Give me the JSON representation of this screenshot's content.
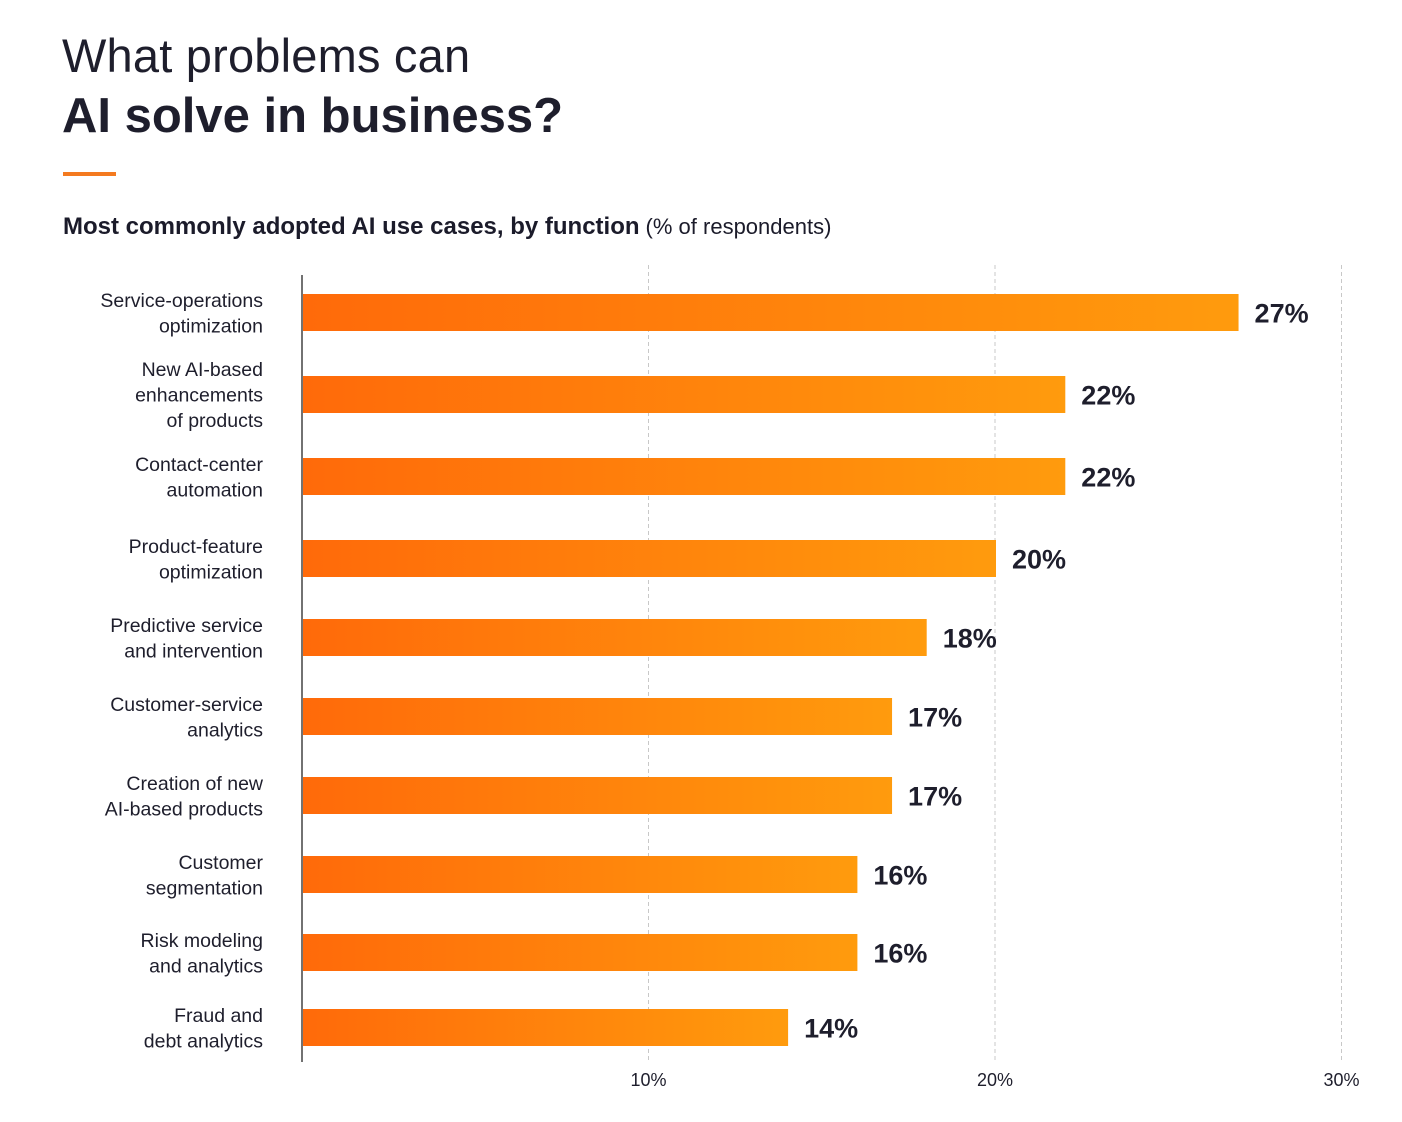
{
  "header": {
    "title_line1": "What problems can",
    "title_line2": "AI solve in business?",
    "subtitle": "Most commonly adopted AI use cases, by function",
    "subtitle_unit": "(% of respondents)"
  },
  "colors": {
    "accent": "#f47a1f",
    "bar_start": "#ff6a0a",
    "bar_end": "#ff9b0d",
    "text": "#1e1e2c",
    "grid": "#c8c8c8",
    "axis": "#444444"
  },
  "chart_data": {
    "type": "bar",
    "orientation": "horizontal",
    "title": "What problems can AI solve in business?",
    "subtitle": "Most commonly adopted AI use cases, by function (% of respondents)",
    "categories": [
      [
        "Service-operations",
        "optimization"
      ],
      [
        "New AI-based",
        "enhancements",
        "of products"
      ],
      [
        "Contact-center",
        "automation"
      ],
      [
        "Product-feature",
        "optimization"
      ],
      [
        "Predictive service",
        "and intervention"
      ],
      [
        "Customer-service",
        "analytics"
      ],
      [
        "Creation of new",
        "AI-based products"
      ],
      [
        "Customer",
        "segmentation"
      ],
      [
        "Risk modeling",
        "and analytics"
      ],
      [
        "Fraud and",
        "debt analytics"
      ]
    ],
    "values": [
      27,
      22,
      22,
      20,
      18,
      17,
      17,
      16,
      16,
      14
    ],
    "value_labels": [
      "27%",
      "22%",
      "22%",
      "20%",
      "18%",
      "17%",
      "17%",
      "16%",
      "16%",
      "14%"
    ],
    "xlim": [
      0,
      30
    ],
    "xticks": [
      10,
      20,
      30
    ],
    "xtick_labels": [
      "10%",
      "20%",
      "30%"
    ],
    "grid": "vertical dashed",
    "legend": "none"
  }
}
